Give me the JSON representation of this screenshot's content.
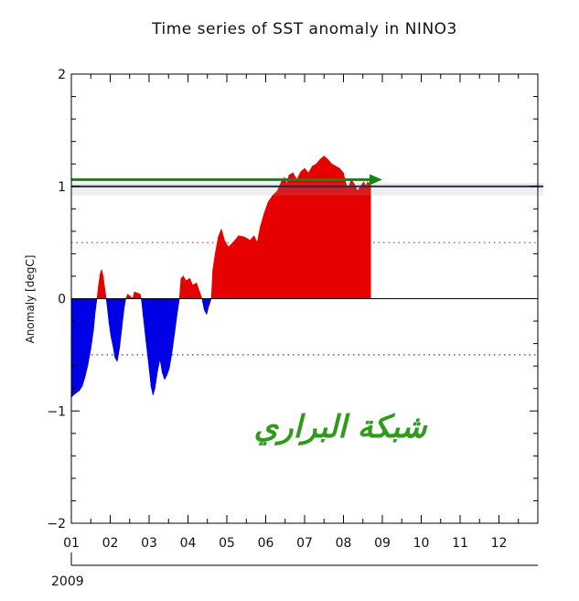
{
  "chart_data": {
    "type": "area",
    "title": "Time series of SST anomaly in NINO3",
    "xlabel": "",
    "ylabel": "Anomaly [degC]",
    "year_label": "2009",
    "ylim": [
      -2,
      2
    ],
    "xlim": [
      1,
      13
    ],
    "yticks": [
      -2,
      -1,
      0,
      1,
      2
    ],
    "ytick_labels": [
      "−2",
      "−1",
      "0",
      "1",
      "2"
    ],
    "xticks": [
      1,
      2,
      3,
      4,
      5,
      6,
      7,
      8,
      9,
      10,
      11,
      12
    ],
    "xtick_labels": [
      "01",
      "02",
      "03",
      "04",
      "05",
      "06",
      "07",
      "08",
      "09",
      "10",
      "11",
      "12"
    ],
    "threshold_lines": [
      0.5,
      -0.5
    ],
    "reference_line": 1.0,
    "positive_color": "#e60000",
    "negative_color": "#0000e6",
    "threshold_pos_color": "#e60000",
    "threshold_neg_color": "#0000e6",
    "arrow_color": "#118811",
    "arrow": {
      "x_start": 1.0,
      "x_end": 9.0,
      "y": 1.06
    },
    "watermark_text": "شبكة البراري",
    "grid": false,
    "series": [
      {
        "points": [
          [
            1.0,
            -0.88
          ],
          [
            1.05,
            -0.86
          ],
          [
            1.12,
            -0.84
          ],
          [
            1.2,
            -0.82
          ],
          [
            1.28,
            -0.78
          ],
          [
            1.35,
            -0.7
          ],
          [
            1.42,
            -0.6
          ],
          [
            1.5,
            -0.45
          ],
          [
            1.57,
            -0.28
          ],
          [
            1.62,
            -0.1
          ],
          [
            1.66,
            0.0
          ],
          [
            1.7,
            0.12
          ],
          [
            1.74,
            0.22
          ],
          [
            1.78,
            0.26
          ],
          [
            1.82,
            0.2
          ],
          [
            1.88,
            0.04
          ],
          [
            1.92,
            -0.06
          ],
          [
            1.97,
            -0.22
          ],
          [
            2.02,
            -0.34
          ],
          [
            2.07,
            -0.42
          ],
          [
            2.12,
            -0.52
          ],
          [
            2.18,
            -0.56
          ],
          [
            2.24,
            -0.44
          ],
          [
            2.3,
            -0.26
          ],
          [
            2.36,
            -0.08
          ],
          [
            2.4,
            0.0
          ],
          [
            2.45,
            0.04
          ],
          [
            2.52,
            0.02
          ],
          [
            2.58,
            0.0
          ],
          [
            2.62,
            0.06
          ],
          [
            2.7,
            0.05
          ],
          [
            2.77,
            0.04
          ],
          [
            2.8,
            0.0
          ],
          [
            2.85,
            -0.16
          ],
          [
            2.92,
            -0.38
          ],
          [
            3.0,
            -0.62
          ],
          [
            3.05,
            -0.78
          ],
          [
            3.1,
            -0.86
          ],
          [
            3.15,
            -0.8
          ],
          [
            3.22,
            -0.64
          ],
          [
            3.28,
            -0.54
          ],
          [
            3.34,
            -0.66
          ],
          [
            3.4,
            -0.72
          ],
          [
            3.46,
            -0.68
          ],
          [
            3.52,
            -0.62
          ],
          [
            3.58,
            -0.5
          ],
          [
            3.66,
            -0.3
          ],
          [
            3.72,
            -0.14
          ],
          [
            3.78,
            0.0
          ],
          [
            3.82,
            0.18
          ],
          [
            3.88,
            0.2
          ],
          [
            3.95,
            0.16
          ],
          [
            4.05,
            0.18
          ],
          [
            4.12,
            0.12
          ],
          [
            4.22,
            0.14
          ],
          [
            4.3,
            0.06
          ],
          [
            4.36,
            0.0
          ],
          [
            4.42,
            -0.1
          ],
          [
            4.48,
            -0.14
          ],
          [
            4.54,
            -0.06
          ],
          [
            4.6,
            0.0
          ],
          [
            4.64,
            0.26
          ],
          [
            4.7,
            0.4
          ],
          [
            4.78,
            0.55
          ],
          [
            4.86,
            0.62
          ],
          [
            4.94,
            0.52
          ],
          [
            5.04,
            0.46
          ],
          [
            5.16,
            0.5
          ],
          [
            5.3,
            0.56
          ],
          [
            5.45,
            0.55
          ],
          [
            5.6,
            0.52
          ],
          [
            5.7,
            0.56
          ],
          [
            5.78,
            0.5
          ],
          [
            5.86,
            0.64
          ],
          [
            5.96,
            0.76
          ],
          [
            6.06,
            0.86
          ],
          [
            6.18,
            0.92
          ],
          [
            6.3,
            0.96
          ],
          [
            6.4,
            1.04
          ],
          [
            6.48,
            1.08
          ],
          [
            6.54,
            1.02
          ],
          [
            6.6,
            1.1
          ],
          [
            6.7,
            1.12
          ],
          [
            6.8,
            1.06
          ],
          [
            6.9,
            1.13
          ],
          [
            7.0,
            1.16
          ],
          [
            7.1,
            1.12
          ],
          [
            7.2,
            1.18
          ],
          [
            7.3,
            1.2
          ],
          [
            7.4,
            1.24
          ],
          [
            7.5,
            1.27
          ],
          [
            7.6,
            1.24
          ],
          [
            7.7,
            1.2
          ],
          [
            7.8,
            1.18
          ],
          [
            7.9,
            1.16
          ],
          [
            8.0,
            1.12
          ],
          [
            8.05,
            1.04
          ],
          [
            8.12,
            0.98
          ],
          [
            8.2,
            1.06
          ],
          [
            8.28,
            1.02
          ],
          [
            8.36,
            0.96
          ],
          [
            8.44,
            1.0
          ],
          [
            8.52,
            1.04
          ],
          [
            8.58,
            1.0
          ],
          [
            8.62,
            1.04
          ],
          [
            8.7,
            1.02
          ]
        ]
      }
    ]
  }
}
